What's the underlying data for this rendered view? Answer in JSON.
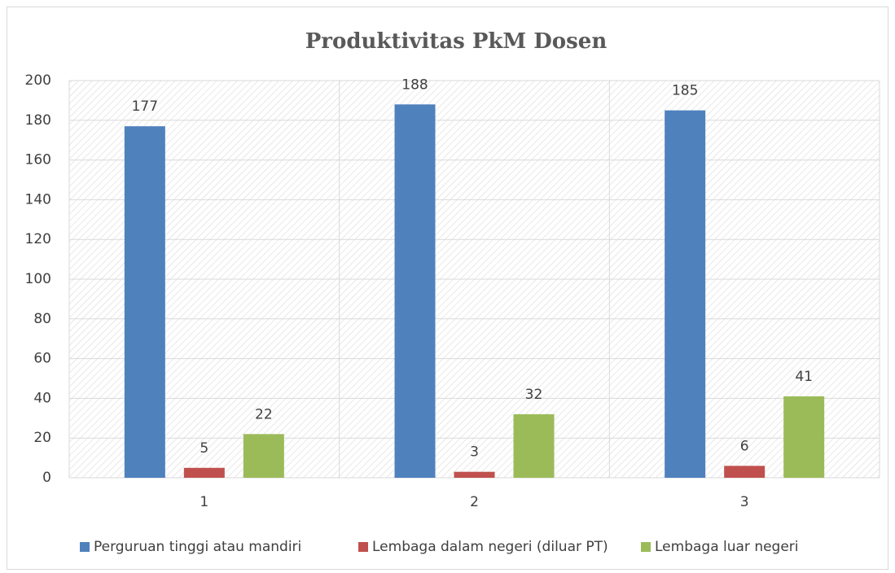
{
  "chart_data": {
    "type": "bar",
    "title": "Produktivitas PkM Dosen",
    "categories": [
      "1",
      "2",
      "3"
    ],
    "series": [
      {
        "name": "Perguruan tinggi atau mandiri",
        "color": "#4f81bd",
        "values": [
          177,
          188,
          185
        ]
      },
      {
        "name": "Lembaga dalam negeri (diluar PT)",
        "color": "#c0504d",
        "values": [
          5,
          3,
          6
        ]
      },
      {
        "name": "Lembaga luar negeri",
        "color": "#9bbb59",
        "values": [
          22,
          32,
          41
        ]
      }
    ],
    "ylim": [
      0,
      200
    ],
    "yticks": [
      0,
      20,
      40,
      60,
      80,
      100,
      120,
      140,
      160,
      180,
      200
    ],
    "grid": true,
    "legend": "bottom"
  }
}
